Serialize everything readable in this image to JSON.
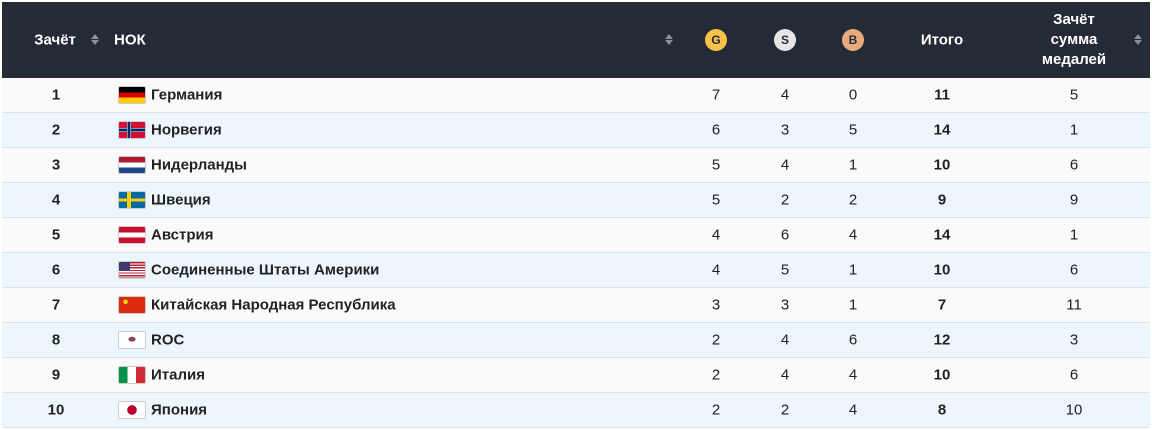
{
  "header": {
    "rank": "Зачёт",
    "noc": "НОК",
    "gold": "G",
    "silver": "S",
    "bronze": "B",
    "total": "Итого",
    "rank_total": "Зачёт сумма медалей"
  },
  "colors": {
    "header_bg": "#252a37",
    "gold": "#f9c24a",
    "silver": "#e6e6e6",
    "bronze": "#e9ab7c"
  },
  "rows": [
    {
      "rank": "1",
      "flag": "de",
      "country": "Германия",
      "g": "7",
      "s": "4",
      "b": "0",
      "total": "11",
      "rank_total": "5"
    },
    {
      "rank": "2",
      "flag": "no",
      "country": "Норвегия",
      "g": "6",
      "s": "3",
      "b": "5",
      "total": "14",
      "rank_total": "1"
    },
    {
      "rank": "3",
      "flag": "nl",
      "country": "Нидерланды",
      "g": "5",
      "s": "4",
      "b": "1",
      "total": "10",
      "rank_total": "6"
    },
    {
      "rank": "4",
      "flag": "se",
      "country": "Швеция",
      "g": "5",
      "s": "2",
      "b": "2",
      "total": "9",
      "rank_total": "9"
    },
    {
      "rank": "5",
      "flag": "at",
      "country": "Австрия",
      "g": "4",
      "s": "6",
      "b": "4",
      "total": "14",
      "rank_total": "1"
    },
    {
      "rank": "6",
      "flag": "us",
      "country": "Соединенные Штаты Америки",
      "g": "4",
      "s": "5",
      "b": "1",
      "total": "10",
      "rank_total": "6"
    },
    {
      "rank": "7",
      "flag": "cn",
      "country": "Китайская Народная Республика",
      "g": "3",
      "s": "3",
      "b": "1",
      "total": "7",
      "rank_total": "11"
    },
    {
      "rank": "8",
      "flag": "roc",
      "country": "ROC",
      "g": "2",
      "s": "4",
      "b": "6",
      "total": "12",
      "rank_total": "3"
    },
    {
      "rank": "9",
      "flag": "it",
      "country": "Италия",
      "g": "2",
      "s": "4",
      "b": "4",
      "total": "10",
      "rank_total": "6"
    },
    {
      "rank": "10",
      "flag": "jp",
      "country": "Япония",
      "g": "2",
      "s": "2",
      "b": "4",
      "total": "8",
      "rank_total": "10"
    }
  ]
}
